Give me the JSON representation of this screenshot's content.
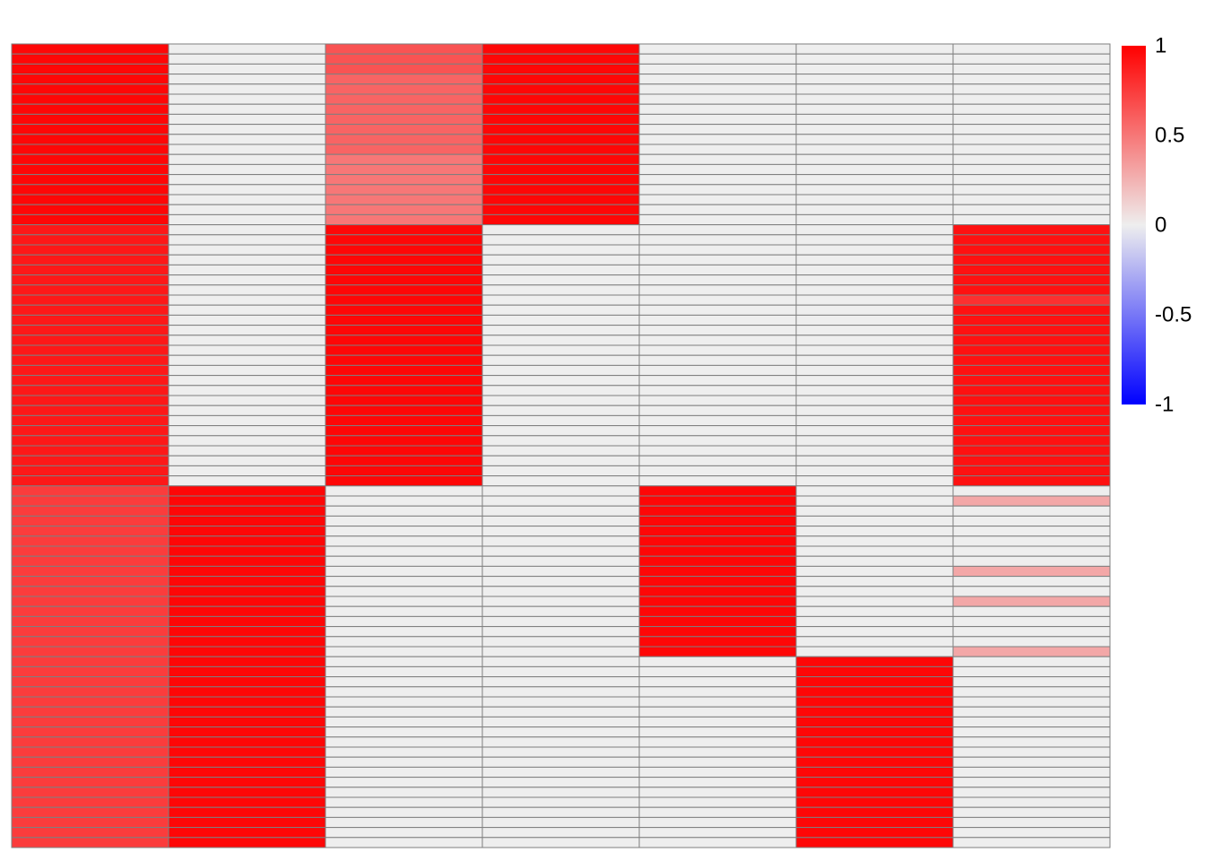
{
  "chart_data": {
    "type": "heatmap",
    "title": "",
    "xlabel": "",
    "ylabel": "",
    "n_rows": 80,
    "n_cols": 7,
    "default_value": 0,
    "grid": true,
    "legend_position": "right",
    "colorscale": {
      "min": -1,
      "max": 1,
      "stops": [
        {
          "value": -1,
          "color": "#0000ff"
        },
        {
          "value": 0,
          "color": "#eeeeee"
        },
        {
          "value": 1,
          "color": "#ff0000"
        }
      ],
      "tick_values": [
        1,
        0.5,
        0,
        -0.5,
        -1
      ],
      "tick_labels": [
        "1",
        "0.5",
        "0",
        "-0.5",
        "-1"
      ]
    },
    "value_blocks": [
      {
        "col": 1,
        "row_start": 1,
        "row_end": 18,
        "value": 0.97
      },
      {
        "col": 1,
        "row_start": 19,
        "row_end": 44,
        "value": 0.9
      },
      {
        "col": 1,
        "row_start": 45,
        "row_end": 80,
        "value": 0.75
      },
      {
        "col": 2,
        "row_start": 45,
        "row_end": 80,
        "value": 0.97
      },
      {
        "col": 3,
        "row_start": 1,
        "row_end": 3,
        "value": 0.65
      },
      {
        "col": 3,
        "row_start": 4,
        "row_end": 11,
        "value": 0.58
      },
      {
        "col": 3,
        "row_start": 12,
        "row_end": 18,
        "value": 0.5
      },
      {
        "col": 3,
        "row_start": 19,
        "row_end": 44,
        "value": 0.97
      },
      {
        "col": 4,
        "row_start": 1,
        "row_end": 18,
        "value": 0.97
      },
      {
        "col": 5,
        "row_start": 45,
        "row_end": 61,
        "value": 0.97
      },
      {
        "col": 6,
        "row_start": 62,
        "row_end": 80,
        "value": 0.97
      },
      {
        "col": 7,
        "row_start": 19,
        "row_end": 44,
        "value": 0.93
      },
      {
        "col": 7,
        "row_start": 26,
        "row_end": 26,
        "value": 0.8
      },
      {
        "col": 7,
        "row_start": 46,
        "row_end": 46,
        "value": 0.3
      },
      {
        "col": 7,
        "row_start": 53,
        "row_end": 53,
        "value": 0.3
      },
      {
        "col": 7,
        "row_start": 56,
        "row_end": 56,
        "value": 0.3
      },
      {
        "col": 7,
        "row_start": 61,
        "row_end": 61,
        "value": 0.3
      }
    ]
  }
}
